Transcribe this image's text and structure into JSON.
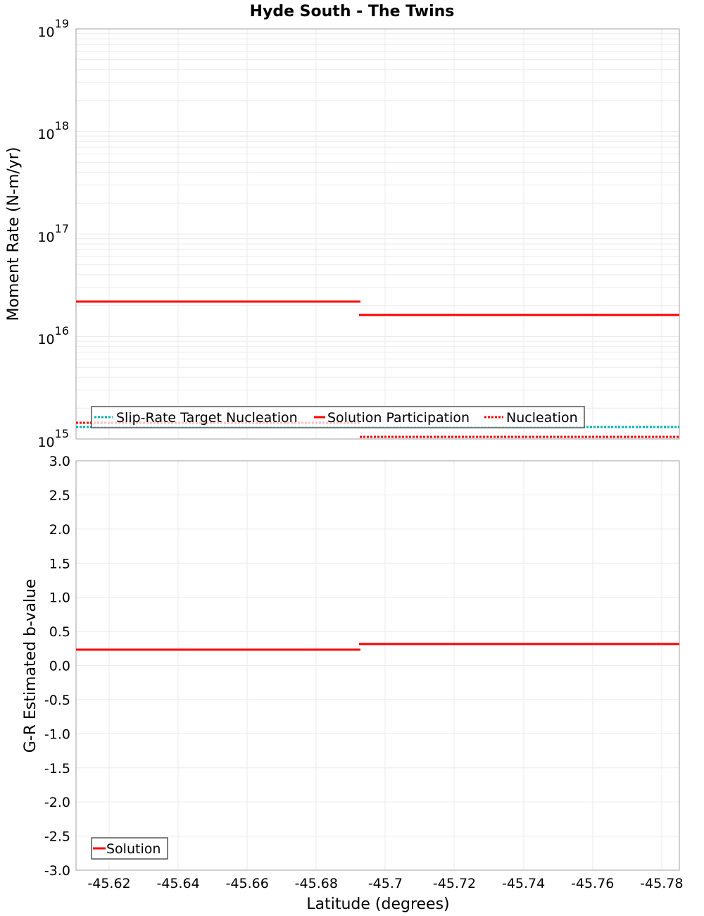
{
  "title": "Hyde South - The Twins",
  "colors": {
    "solution": "#ff0000",
    "target": "#00b4b4",
    "nucleation": "#ff0000",
    "grid": "#ebebeb",
    "frame": "#a0a0a0"
  },
  "chart_data": [
    {
      "type": "line",
      "title": "Hyde South - The Twins",
      "xlabel": "Latitude (degrees)",
      "ylabel": "Moment Rate (N-m/yr)",
      "yscale": "log",
      "ylim": [
        1000000000000000.0,
        1e+19
      ],
      "xlim": [
        -45.608,
        -45.786
      ],
      "y_tick_labels": [
        "10^15",
        "10^16",
        "10^17",
        "10^18",
        "10^19"
      ],
      "legend": [
        "Slip-Rate Target Nucleation",
        "Solution Participation",
        "Nucleation"
      ],
      "legend_position": "lower-left",
      "series": [
        {
          "name": "Slip-Rate Target Nucleation",
          "style": "dotted",
          "color": "#00b4b4",
          "x": [
            -45.608,
            -45.6907,
            -45.6907,
            -45.786
          ],
          "y": [
            1300000000000000.0,
            1300000000000000.0,
            1300000000000000.0,
            1300000000000000.0
          ]
        },
        {
          "name": "Solution Participation",
          "style": "solid",
          "color": "#ff0000",
          "x": [
            -45.608,
            -45.6907,
            -45.6907,
            -45.786
          ],
          "y": [
            2.2e+16,
            2.2e+16,
            1.6e+16,
            1.6e+16
          ]
        },
        {
          "name": "Nucleation",
          "style": "dotted",
          "color": "#ff0000",
          "x": [
            -45.608,
            -45.6907,
            -45.6907,
            -45.786
          ],
          "y": [
            1440000000000000.0,
            1440000000000000.0,
            1050000000000000.0,
            1050000000000000.0
          ]
        }
      ]
    },
    {
      "type": "line",
      "xlabel": "Latitude (degrees)",
      "ylabel": "G-R Estimated b-value",
      "ylim": [
        -3.0,
        3.0
      ],
      "xlim": [
        -45.608,
        -45.786
      ],
      "y_ticks": [
        3.0,
        2.5,
        2.0,
        1.5,
        1.0,
        0.5,
        0.0,
        -0.5,
        -1.0,
        -1.5,
        -2.0,
        -2.5,
        -3.0
      ],
      "x_ticks": [
        -45.62,
        -45.64,
        -45.66,
        -45.68,
        -45.7,
        -45.72,
        -45.74,
        -45.76,
        -45.78
      ],
      "legend": [
        "Solution"
      ],
      "legend_position": "lower-left",
      "series": [
        {
          "name": "Solution",
          "style": "solid",
          "color": "#ff0000",
          "x": [
            -45.608,
            -45.6907,
            -45.6907,
            -45.786
          ],
          "y": [
            0.23,
            0.23,
            0.31,
            0.31
          ]
        }
      ]
    }
  ],
  "top": {
    "ylabel": "Moment Rate (N-m/yr)",
    "yticks": [
      {
        "base": "10",
        "exp": "19"
      },
      {
        "base": "10",
        "exp": "18"
      },
      {
        "base": "10",
        "exp": "17"
      },
      {
        "base": "10",
        "exp": "16"
      },
      {
        "base": "10",
        "exp": "15"
      }
    ],
    "legend": {
      "target": "Slip-Rate Target Nucleation",
      "solution": "Solution Participation",
      "nucleation": "Nucleation"
    }
  },
  "bottom": {
    "ylabel": "G-R Estimated b-value",
    "yticks": [
      "3.0",
      "2.5",
      "2.0",
      "1.5",
      "1.0",
      "0.5",
      "0.0",
      "-0.5",
      "-1.0",
      "-1.5",
      "-2.0",
      "-2.5",
      "-3.0"
    ],
    "legend": {
      "solution": "Solution"
    }
  },
  "xaxis": {
    "label": "Latitude (degrees)",
    "ticks": [
      "-45.62",
      "-45.64",
      "-45.66",
      "-45.68",
      "-45.7",
      "-45.72",
      "-45.74",
      "-45.76",
      "-45.78"
    ]
  }
}
